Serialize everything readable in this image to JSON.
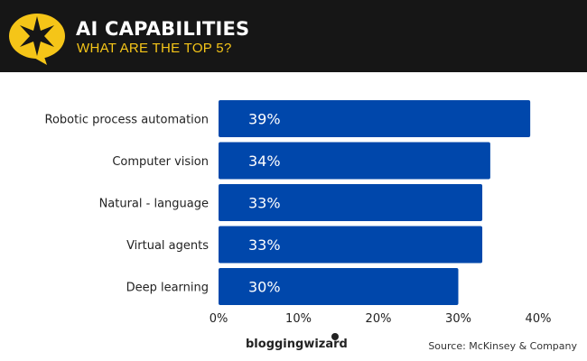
{
  "header": {
    "title": "AI CAPABILITIES",
    "subtitle": "WHAT ARE THE TOP 5?",
    "logo_icon": "star-speech-bubble-icon",
    "accent_color": "#f5c518",
    "background_color": "#161616"
  },
  "footer": {
    "brand": "bloggingwizard",
    "source": "Source: McKinsey & Company"
  },
  "chart_data": {
    "type": "bar",
    "orientation": "horizontal",
    "title": "AI CAPABILITIES",
    "subtitle": "WHAT ARE THE TOP 5?",
    "categories": [
      "Robotic process automation",
      "Computer vision",
      "Natural - language",
      "Virtual agents",
      "Deep learning"
    ],
    "values": [
      39,
      34,
      33,
      33,
      30
    ],
    "value_labels": [
      "39%",
      "34%",
      "33%",
      "33%",
      "30%"
    ],
    "xlabel": "",
    "ylabel": "",
    "xlim": [
      0,
      40
    ],
    "x_ticks": [
      0,
      10,
      20,
      30,
      40
    ],
    "x_tick_labels": [
      "0%",
      "10%",
      "20%",
      "30%",
      "40%"
    ],
    "bar_color": "#0047ab",
    "grid": false,
    "legend": "none"
  }
}
